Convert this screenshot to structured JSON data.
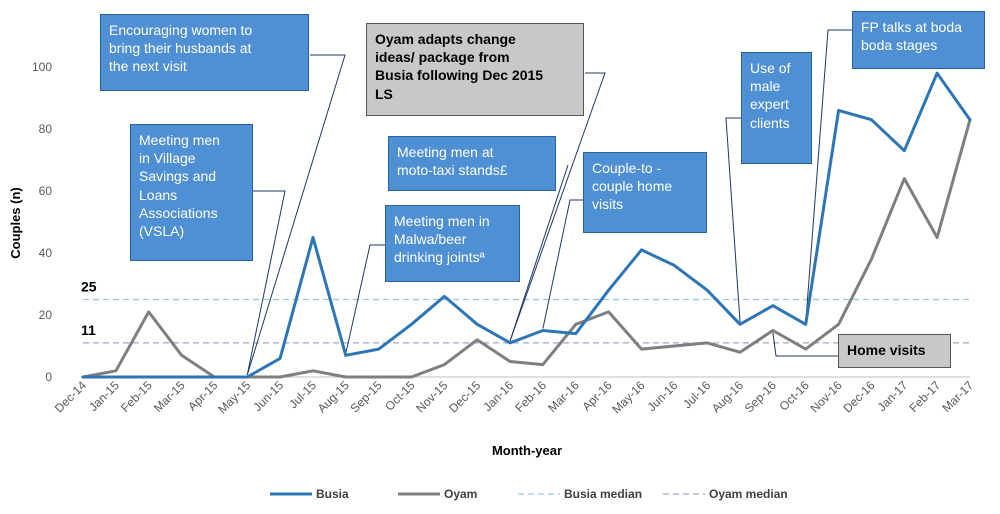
{
  "chart_data": {
    "type": "line",
    "xlabel": "Month-year",
    "ylabel": "Couples (n)",
    "ylim": [
      0,
      120
    ],
    "yticks": [
      0,
      20,
      40,
      60,
      80,
      100
    ],
    "categories": [
      "Dec-14",
      "Jan-15",
      "Feb-15",
      "Mar-15",
      "Apr-15",
      "May-15",
      "Jun-15",
      "Jul-15",
      "Aug-15",
      "Sep-15",
      "Oct-15",
      "Nov-15",
      "Dec-15",
      "Jan-16",
      "Feb-16",
      "Mar-16",
      "Apr-16",
      "May-16",
      "Jun-16",
      "Jul-16",
      "Aug-16",
      "Sep-16",
      "Oct-16",
      "Nov-16",
      "Dec-16",
      "Jan-17",
      "Feb-17",
      "Mar-17"
    ],
    "series": [
      {
        "name": "Busia",
        "color": "#2e75b6",
        "values": [
          0,
          0,
          0,
          0,
          0,
          0,
          6,
          45,
          7,
          9,
          17,
          26,
          17,
          11,
          15,
          14,
          28,
          41,
          36,
          28,
          17,
          23,
          17,
          86,
          83,
          73,
          98,
          83
        ]
      },
      {
        "name": "Oyam",
        "color": "#7f7f7f",
        "values": [
          0,
          2,
          21,
          7,
          0,
          0,
          0,
          2,
          0,
          0,
          0,
          4,
          12,
          5,
          4,
          17,
          21,
          9,
          10,
          11,
          8,
          15,
          9,
          17,
          38,
          64,
          45,
          83
        ]
      }
    ],
    "medians": [
      {
        "name": "Busia median",
        "value": 25,
        "label": "25",
        "color": "#9dc3e6"
      },
      {
        "name": "Oyam median",
        "value": 11,
        "label": "11",
        "color": "#a6a6c8"
      }
    ],
    "legend_position": "bottom",
    "grid": false,
    "annotations": [
      {
        "id": "women-husbands",
        "style": "blue",
        "lines": [
          "Encouraging women to",
          "bring their husbands at",
          "the next visit"
        ],
        "anchor": "May-15"
      },
      {
        "id": "vsla",
        "style": "blue",
        "lines": [
          "Meeting men",
          "in Village",
          "Savings and",
          "Loans",
          "Associations",
          "(VSLA)"
        ],
        "anchor": "May-15"
      },
      {
        "id": "oyam-adapts",
        "style": "grey",
        "lines": [
          "Oyam adapts change",
          "ideas/ package from",
          "Busia following Dec 2015",
          "LS"
        ],
        "anchor": "Jan-16"
      },
      {
        "id": "moto-taxi",
        "style": "blue",
        "lines": [
          "Meeting men at",
          "moto-taxi stands£"
        ],
        "anchor": "Jan-16"
      },
      {
        "id": "malwa",
        "style": "blue",
        "lines": [
          "Meeting men in",
          "Malwa/beer",
          "drinking jointsª"
        ],
        "anchor": "Aug-15"
      },
      {
        "id": "couple-to-couple",
        "style": "blue",
        "lines": [
          "Couple-to -",
          "couple home",
          "visits"
        ],
        "anchor": "Feb-16"
      },
      {
        "id": "male-expert",
        "style": "blue",
        "lines": [
          "Use of",
          "male",
          "expert",
          "clients"
        ],
        "anchor": "Aug-16"
      },
      {
        "id": "fp-talks",
        "style": "blue",
        "lines": [
          "FP talks at boda",
          "boda stages"
        ],
        "anchor": "Oct-16"
      },
      {
        "id": "home-visits",
        "style": "grey",
        "lines": [
          "Home visits"
        ],
        "anchor": "Sep-16"
      }
    ]
  }
}
